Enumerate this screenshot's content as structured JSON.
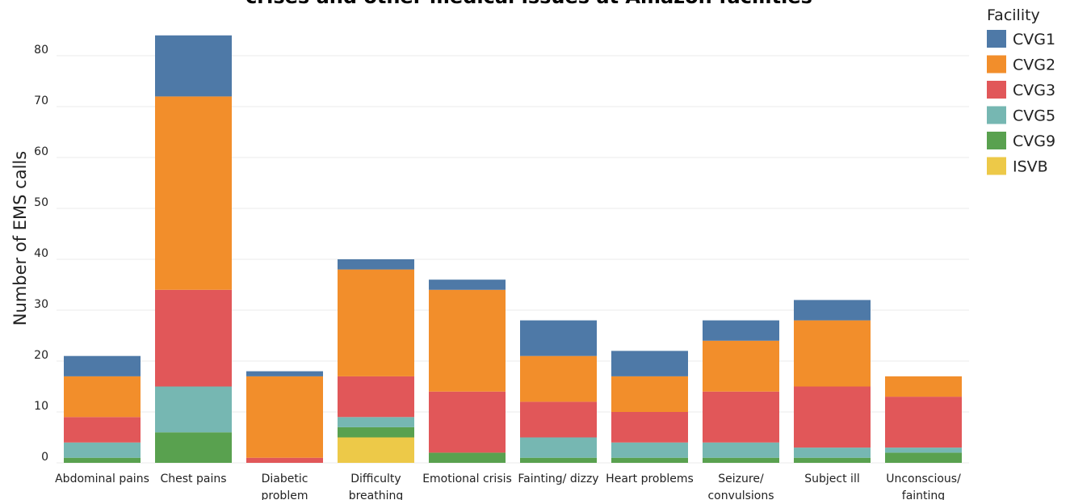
{
  "chart_data": {
    "type": "bar",
    "stacked": true,
    "title": "crises and other medical issues at Amazon facilities",
    "xlabel": "",
    "ylabel": "Number of EMS calls",
    "ylim": [
      0,
      85
    ],
    "yticks": [
      0,
      10,
      20,
      30,
      40,
      50,
      60,
      70,
      80
    ],
    "grid": true,
    "legend_title": "Facility",
    "legend_position": "top-right",
    "categories": [
      [
        "Abdominal pains"
      ],
      [
        "Chest pains"
      ],
      [
        "Diabetic",
        "problem"
      ],
      [
        "Difficulty",
        "breathing"
      ],
      [
        "Emotional crisis"
      ],
      [
        "Fainting/ dizzy"
      ],
      [
        "Heart problems"
      ],
      [
        "Seizure/",
        "convulsions"
      ],
      [
        "Subject ill"
      ],
      [
        "Unconscious/",
        "fainting"
      ]
    ],
    "series": [
      {
        "name": "ISVB",
        "color": "#EDC948",
        "values": [
          0,
          0,
          0,
          5,
          0,
          0,
          0,
          0,
          0,
          0
        ]
      },
      {
        "name": "CVG9",
        "color": "#59A14F",
        "values": [
          1,
          6,
          0,
          2,
          2,
          1,
          1,
          1,
          1,
          2
        ]
      },
      {
        "name": "CVG5",
        "color": "#76B7B2",
        "values": [
          3,
          9,
          0,
          2,
          0,
          4,
          3,
          3,
          2,
          1
        ]
      },
      {
        "name": "CVG3",
        "color": "#E15759",
        "values": [
          5,
          19,
          1,
          8,
          12,
          7,
          6,
          10,
          12,
          10
        ]
      },
      {
        "name": "CVG2",
        "color": "#F28E2B",
        "values": [
          8,
          38,
          16,
          21,
          20,
          9,
          7,
          10,
          13,
          4
        ]
      },
      {
        "name": "CVG1",
        "color": "#4E79A7",
        "values": [
          4,
          12,
          1,
          2,
          2,
          7,
          5,
          4,
          4,
          0
        ]
      }
    ],
    "legend_order": [
      "CVG1",
      "CVG2",
      "CVG3",
      "CVG5",
      "CVG9",
      "ISVB"
    ]
  }
}
